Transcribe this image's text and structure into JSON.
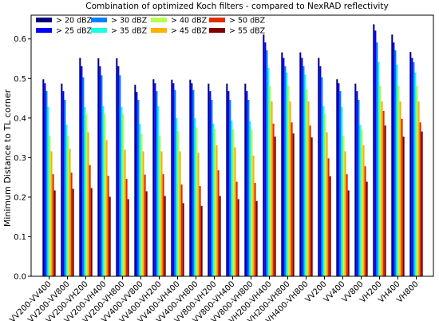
{
  "chart_data": {
    "type": "bar",
    "title": "Combination of optimized Koch filters - compared to NexRAD reflectivity",
    "xlabel": "",
    "ylabel": "Minimum Distance to TL corner",
    "ylim": [
      0,
      0.66
    ],
    "yticks": [
      "0.0",
      "0.1",
      "0.2",
      "0.3",
      "0.4",
      "0.5",
      "0.6"
    ],
    "grid": false,
    "legend_position": "top-left",
    "categories": [
      "VV200-VV400",
      "VV200-VV800",
      "VV200-VH200",
      "VV200-VH400",
      "VV200-VH800",
      "VV400-VV800",
      "VV400-VH200",
      "VV400-VH400",
      "VV400-VH800",
      "VV800-VH200",
      "VV800-VH400",
      "VV800-VH800",
      "VH200-VH400",
      "VH200-VH800",
      "VH400-VH800",
      "VV200",
      "VV400",
      "VV800",
      "VH200",
      "VH400",
      "VH800"
    ],
    "series": [
      {
        "name": "> 20 dBZ",
        "color": "#00007f",
        "values": [
          0.498,
          0.487,
          0.552,
          0.551,
          0.551,
          0.484,
          0.498,
          0.497,
          0.497,
          0.487,
          0.487,
          0.487,
          0.611,
          0.566,
          0.566,
          0.552,
          0.498,
          0.487,
          0.637,
          0.611,
          0.567
        ]
      },
      {
        "name": "> 25 dBZ",
        "color": "#0000ff",
        "values": [
          0.488,
          0.468,
          0.531,
          0.531,
          0.531,
          0.466,
          0.488,
          0.488,
          0.488,
          0.468,
          0.468,
          0.468,
          0.591,
          0.552,
          0.552,
          0.531,
          0.488,
          0.468,
          0.621,
          0.591,
          0.552
        ]
      },
      {
        "name": "> 30 dBZ",
        "color": "#0080ff",
        "values": [
          0.468,
          0.446,
          0.503,
          0.508,
          0.508,
          0.446,
          0.468,
          0.471,
          0.471,
          0.446,
          0.446,
          0.446,
          0.571,
          0.531,
          0.531,
          0.503,
          0.468,
          0.446,
          0.591,
          0.571,
          0.541
        ]
      },
      {
        "name": "> 35 dBZ",
        "color": "#19ffe6",
        "values": [
          0.428,
          0.383,
          0.428,
          0.43,
          0.428,
          0.385,
          0.43,
          0.4,
          0.4,
          0.386,
          0.394,
          0.392,
          0.527,
          0.515,
          0.51,
          0.43,
          0.428,
          0.383,
          0.542,
          0.535,
          0.515
        ]
      },
      {
        "name": "> 40 dBZ",
        "color": "#b3ff4d",
        "values": [
          0.355,
          0.355,
          0.41,
          0.41,
          0.41,
          0.36,
          0.355,
          0.367,
          0.376,
          0.371,
          0.371,
          0.371,
          0.481,
          0.481,
          0.473,
          0.41,
          0.355,
          0.37,
          0.481,
          0.481,
          0.481
        ]
      },
      {
        "name": "> 45 dBZ",
        "color": "#ffb000",
        "values": [
          0.316,
          0.322,
          0.364,
          0.344,
          0.32,
          0.316,
          0.316,
          0.316,
          0.312,
          0.331,
          0.326,
          0.305,
          0.442,
          0.442,
          0.442,
          0.364,
          0.316,
          0.331,
          0.442,
          0.442,
          0.442
        ]
      },
      {
        "name": "> 50 dBZ",
        "color": "#e32c00",
        "values": [
          0.258,
          0.262,
          0.281,
          0.254,
          0.246,
          0.257,
          0.258,
          0.232,
          0.228,
          0.268,
          0.239,
          0.236,
          0.386,
          0.389,
          0.381,
          0.298,
          0.258,
          0.278,
          0.418,
          0.398,
          0.389
        ]
      },
      {
        "name": "> 55 dBZ",
        "color": "#7f0000",
        "values": [
          0.217,
          0.221,
          0.223,
          0.201,
          0.195,
          0.215,
          0.203,
          0.185,
          0.178,
          0.203,
          0.195,
          0.19,
          0.353,
          0.361,
          0.351,
          0.253,
          0.217,
          0.239,
          0.381,
          0.353,
          0.366
        ]
      }
    ]
  }
}
